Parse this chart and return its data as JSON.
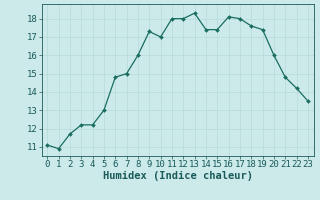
{
  "x": [
    0,
    1,
    2,
    3,
    4,
    5,
    6,
    7,
    8,
    9,
    10,
    11,
    12,
    13,
    14,
    15,
    16,
    17,
    18,
    19,
    20,
    21,
    22,
    23
  ],
  "y": [
    11.1,
    10.9,
    11.7,
    12.2,
    12.2,
    13.0,
    14.8,
    15.0,
    16.0,
    17.3,
    17.0,
    18.0,
    18.0,
    18.3,
    17.4,
    17.4,
    18.1,
    18.0,
    17.6,
    17.4,
    16.0,
    14.8,
    14.2,
    13.5
  ],
  "line_color": "#1a6e5e",
  "marker": "D",
  "marker_size": 2.0,
  "bg_color": "#cceaea",
  "grid_color": "#b8d8d8",
  "xlabel": "Humidex (Indice chaleur)",
  "xlim": [
    -0.5,
    23.5
  ],
  "ylim": [
    10.5,
    18.8
  ],
  "yticks": [
    11,
    12,
    13,
    14,
    15,
    16,
    17,
    18
  ],
  "xticks": [
    0,
    1,
    2,
    3,
    4,
    5,
    6,
    7,
    8,
    9,
    10,
    11,
    12,
    13,
    14,
    15,
    16,
    17,
    18,
    19,
    20,
    21,
    22,
    23
  ],
  "font_color": "#1a5a5a",
  "tick_fontsize": 6.5,
  "label_fontsize": 7.5
}
